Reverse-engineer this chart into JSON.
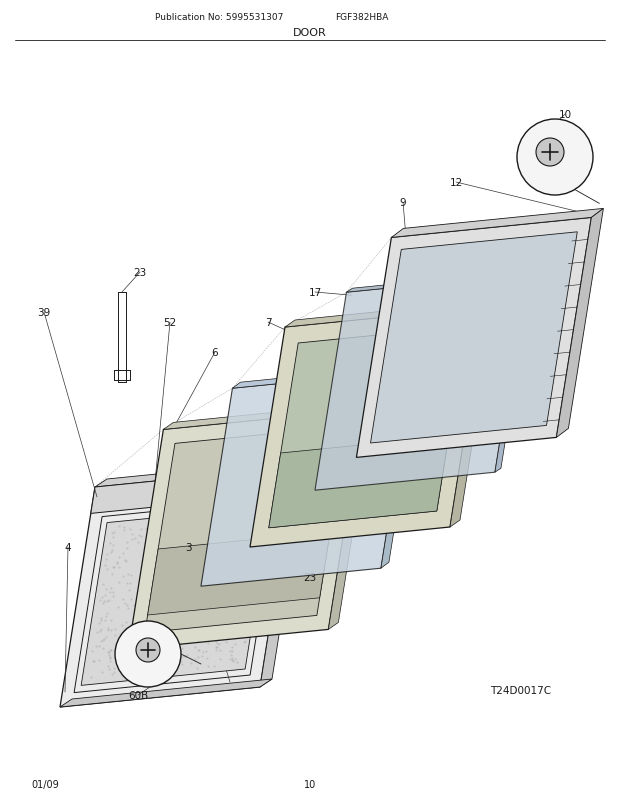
{
  "title": "DOOR",
  "pub_no": "Publication No: 5995531307",
  "model": "FGF382HBA",
  "diagram_id": "T24D0017C",
  "date": "01/09",
  "page": "10",
  "bg_color": "#ffffff",
  "line_color": "#1a1a1a",
  "figsize": [
    6.2,
    8.03
  ],
  "dpi": 100
}
